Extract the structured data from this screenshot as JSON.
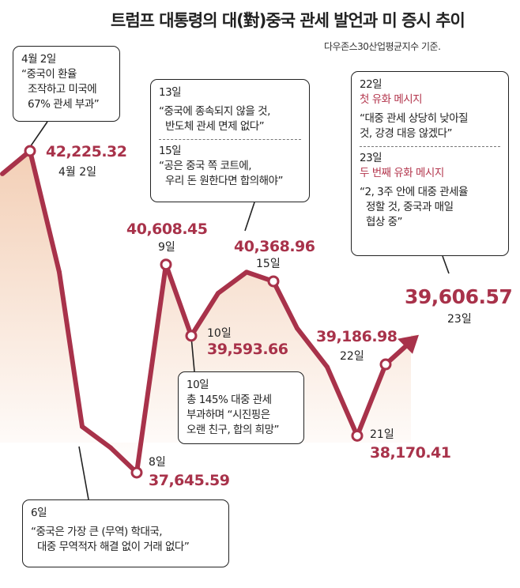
{
  "title": "트럼프 대통령의 대(對)중국 관세 발언과 미 증시 추이",
  "subtitle": "다우존스30산업평균지수 기준.",
  "colors": {
    "line": "#a8324a",
    "value_text": "#a8324a",
    "area_top": "#f3cfb6",
    "area_bottom": "#ffffff"
  },
  "chart_data": {
    "type": "line",
    "title": "트럼프 대통령의 대(對)중국 관세 발언과 미 증시 추이",
    "ylabel": "",
    "xlabel": "",
    "ylim": [
      36800,
      43000
    ],
    "points": [
      {
        "x": "4월 1일",
        "y": 41900,
        "label_value": "",
        "label_date": ""
      },
      {
        "x": "4월 2일",
        "y": 42225.32,
        "label_value": "42,225.32",
        "label_date": "4월 2일"
      },
      {
        "x": "4월 3일",
        "y": 40500,
        "label_value": "",
        "label_date": ""
      },
      {
        "x": "4월 4일",
        "y": 38300,
        "label_value": "",
        "label_date": ""
      },
      {
        "x": "4월 7일",
        "y": 38000,
        "label_value": "",
        "label_date": ""
      },
      {
        "x": "4월 8일",
        "y": 37645.59,
        "label_value": "37,645.59",
        "label_date": "8일"
      },
      {
        "x": "4월 9일",
        "y": 40608.45,
        "label_value": "40,608.45",
        "label_date": "9일"
      },
      {
        "x": "4월 10일",
        "y": 39593.66,
        "label_value": "39,593.66",
        "label_date": "10일"
      },
      {
        "x": "4월 11일",
        "y": 40200,
        "label_value": "",
        "label_date": ""
      },
      {
        "x": "4월 14일",
        "y": 40500,
        "label_value": "",
        "label_date": ""
      },
      {
        "x": "4월 15일",
        "y": 40368.96,
        "label_value": "40,368.96",
        "label_date": "15일"
      },
      {
        "x": "4월 16일",
        "y": 39700,
        "label_value": "",
        "label_date": ""
      },
      {
        "x": "4월 17일",
        "y": 39150,
        "label_value": "",
        "label_date": ""
      },
      {
        "x": "4월 21일",
        "y": 38170.41,
        "label_value": "38,170.41",
        "label_date": "21일"
      },
      {
        "x": "4월 22일",
        "y": 39186.98,
        "label_value": "39,186.98",
        "label_date": "22일"
      },
      {
        "x": "4월 23일",
        "y": 39606.57,
        "label_value": "39,606.57",
        "label_date": "23일"
      }
    ],
    "marked_points": [
      "4월 2일",
      "4월 8일",
      "4월 9일",
      "4월 10일",
      "4월 15일",
      "4월 21일",
      "4월 22일"
    ],
    "arrow_end": "4월 23일"
  },
  "callouts": {
    "apr2": {
      "lines": [
        "4월 2일",
        "“중국이 환율",
        "조작하고 미국에",
        "67% 관세 부과”"
      ]
    },
    "apr6": {
      "lines": [
        "6일",
        "“중국은 가장 큰 (무역) 학대국,",
        "대중 무역적자 해결 없이 거래 없다”"
      ]
    },
    "apr10": {
      "lines": [
        "10일",
        "총 145% 대중 관세",
        "부과하며 “시진핑은",
        "오랜 친구, 합의 희망”"
      ]
    },
    "apr13_15": {
      "day1": "13일",
      "quote1": [
        "“중국에 종속되지 않을 것,",
        "반도체 관세 면제 없다”"
      ],
      "day2": "15일",
      "quote2": [
        "“공은 중국 쪽 코트에,",
        "우리 돈 원한다면 합의해야”"
      ]
    },
    "apr22_23": {
      "day1": "22일",
      "headline1": "첫 유화 메시지",
      "quote1": [
        "“대중 관세 상당히 낮아질",
        "것, 강경 대응 않겠다”"
      ],
      "day2": "23일",
      "headline2": "두 번째 유화 메시지",
      "quote2": [
        "“2, 3주 안에 대중 관세율",
        "정할 것, 중국과 매일",
        "협상 중”"
      ]
    }
  }
}
